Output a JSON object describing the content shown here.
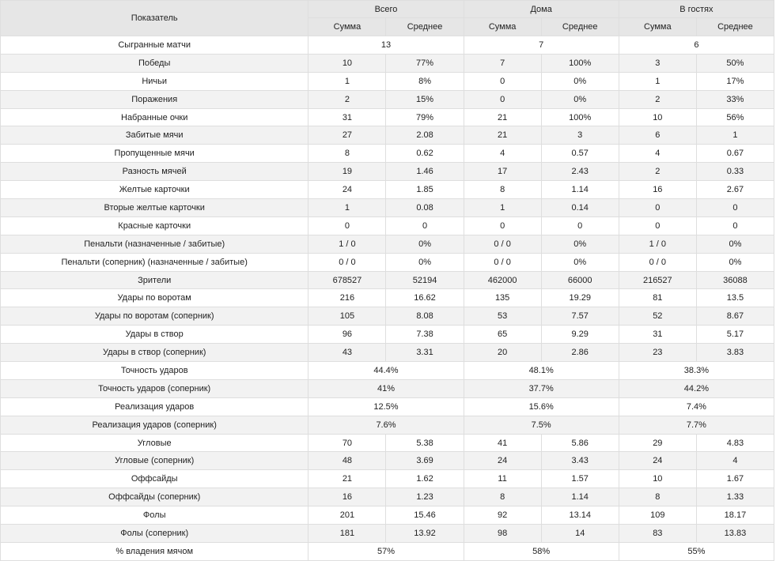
{
  "header": {
    "metric": "Показатель",
    "groups": [
      "Всего",
      "Дома",
      "В гостях"
    ],
    "sub": [
      "Сумма",
      "Среднее"
    ]
  },
  "rows": [
    {
      "label": "Сыгранные матчи",
      "merged": [
        "13",
        "7",
        "6"
      ]
    },
    {
      "label": "Победы",
      "cells": [
        "10",
        "77%",
        "7",
        "100%",
        "3",
        "50%"
      ]
    },
    {
      "label": "Ничьи",
      "cells": [
        "1",
        "8%",
        "0",
        "0%",
        "1",
        "17%"
      ]
    },
    {
      "label": "Поражения",
      "cells": [
        "2",
        "15%",
        "0",
        "0%",
        "2",
        "33%"
      ]
    },
    {
      "label": "Набранные очки",
      "cells": [
        "31",
        "79%",
        "21",
        "100%",
        "10",
        "56%"
      ]
    },
    {
      "label": "Забитые мячи",
      "cells": [
        "27",
        "2.08",
        "21",
        "3",
        "6",
        "1"
      ]
    },
    {
      "label": "Пропущенные мячи",
      "cells": [
        "8",
        "0.62",
        "4",
        "0.57",
        "4",
        "0.67"
      ]
    },
    {
      "label": "Разность мячей",
      "cells": [
        "19",
        "1.46",
        "17",
        "2.43",
        "2",
        "0.33"
      ]
    },
    {
      "label": "Желтые карточки",
      "cells": [
        "24",
        "1.85",
        "8",
        "1.14",
        "16",
        "2.67"
      ]
    },
    {
      "label": "Вторые желтые карточки",
      "cells": [
        "1",
        "0.08",
        "1",
        "0.14",
        "0",
        "0"
      ]
    },
    {
      "label": "Красные карточки",
      "cells": [
        "0",
        "0",
        "0",
        "0",
        "0",
        "0"
      ]
    },
    {
      "label": "Пенальти (назначенные / забитые)",
      "cells": [
        "1 / 0",
        "0%",
        "0 / 0",
        "0%",
        "1 / 0",
        "0%"
      ]
    },
    {
      "label": "Пенальти (соперник) (назначенные / забитые)",
      "cells": [
        "0 / 0",
        "0%",
        "0 / 0",
        "0%",
        "0 / 0",
        "0%"
      ]
    },
    {
      "label": "Зрители",
      "cells": [
        "678527",
        "52194",
        "462000",
        "66000",
        "216527",
        "36088"
      ]
    },
    {
      "label": "Удары по воротам",
      "cells": [
        "216",
        "16.62",
        "135",
        "19.29",
        "81",
        "13.5"
      ]
    },
    {
      "label": "Удары по воротам (соперник)",
      "cells": [
        "105",
        "8.08",
        "53",
        "7.57",
        "52",
        "8.67"
      ]
    },
    {
      "label": "Удары в створ",
      "cells": [
        "96",
        "7.38",
        "65",
        "9.29",
        "31",
        "5.17"
      ]
    },
    {
      "label": "Удары в створ (соперник)",
      "cells": [
        "43",
        "3.31",
        "20",
        "2.86",
        "23",
        "3.83"
      ]
    },
    {
      "label": "Точность ударов",
      "merged": [
        "44.4%",
        "48.1%",
        "38.3%"
      ]
    },
    {
      "label": "Точность ударов (соперник)",
      "merged": [
        "41%",
        "37.7%",
        "44.2%"
      ]
    },
    {
      "label": "Реализация ударов",
      "merged": [
        "12.5%",
        "15.6%",
        "7.4%"
      ]
    },
    {
      "label": "Реализация ударов (соперник)",
      "merged": [
        "7.6%",
        "7.5%",
        "7.7%"
      ]
    },
    {
      "label": "Угловые",
      "cells": [
        "70",
        "5.38",
        "41",
        "5.86",
        "29",
        "4.83"
      ]
    },
    {
      "label": "Угловые (соперник)",
      "cells": [
        "48",
        "3.69",
        "24",
        "3.43",
        "24",
        "4"
      ]
    },
    {
      "label": "Оффсайды",
      "cells": [
        "21",
        "1.62",
        "11",
        "1.57",
        "10",
        "1.67"
      ]
    },
    {
      "label": "Оффсайды (соперник)",
      "cells": [
        "16",
        "1.23",
        "8",
        "1.14",
        "8",
        "1.33"
      ]
    },
    {
      "label": "Фолы",
      "cells": [
        "201",
        "15.46",
        "92",
        "13.14",
        "109",
        "18.17"
      ]
    },
    {
      "label": "Фолы (соперник)",
      "cells": [
        "181",
        "13.92",
        "98",
        "14",
        "83",
        "13.83"
      ]
    },
    {
      "label": "% владения мячом",
      "merged": [
        "57%",
        "58%",
        "55%"
      ]
    }
  ]
}
